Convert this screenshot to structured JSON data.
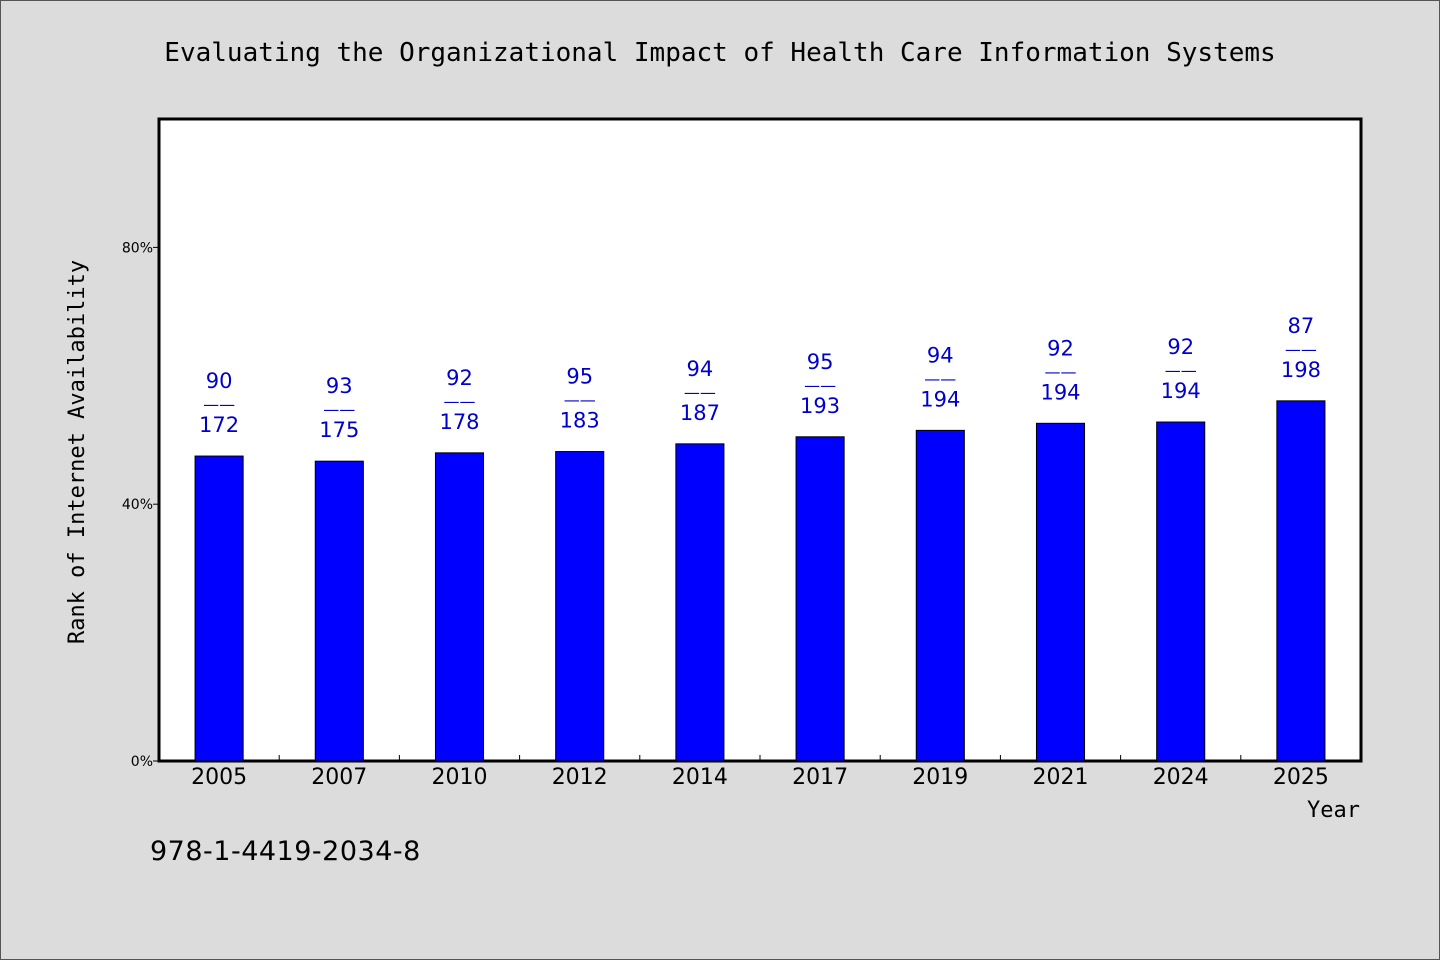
{
  "chart_data": {
    "type": "bar",
    "title": "Evaluating the Organizational Impact of Health Care Information Systems",
    "xlabel": "Year",
    "ylabel": "Rank of Internet Availability",
    "categories": [
      "2005",
      "2007",
      "2010",
      "2012",
      "2014",
      "2017",
      "2019",
      "2021",
      "2024",
      "2025"
    ],
    "values": [
      47.5,
      46.7,
      48.0,
      48.2,
      49.4,
      50.5,
      51.5,
      52.6,
      52.8,
      56.1
    ],
    "labels_top": [
      "90",
      "93",
      "92",
      "95",
      "94",
      "95",
      "94",
      "92",
      "92",
      "87"
    ],
    "labels_bottom": [
      "172",
      "175",
      "178",
      "183",
      "187",
      "193",
      "194",
      "194",
      "194",
      "198"
    ],
    "label_separator": "——",
    "ylim": [
      0,
      100
    ],
    "yticks": [
      0,
      40,
      80
    ],
    "ytick_labels": [
      "0%",
      "40%",
      "80%"
    ],
    "grid": false,
    "bar_color": "#0000ff",
    "label_color": "#0000cc"
  },
  "footer": {
    "isbn": "978-1-4419-2034-8"
  }
}
